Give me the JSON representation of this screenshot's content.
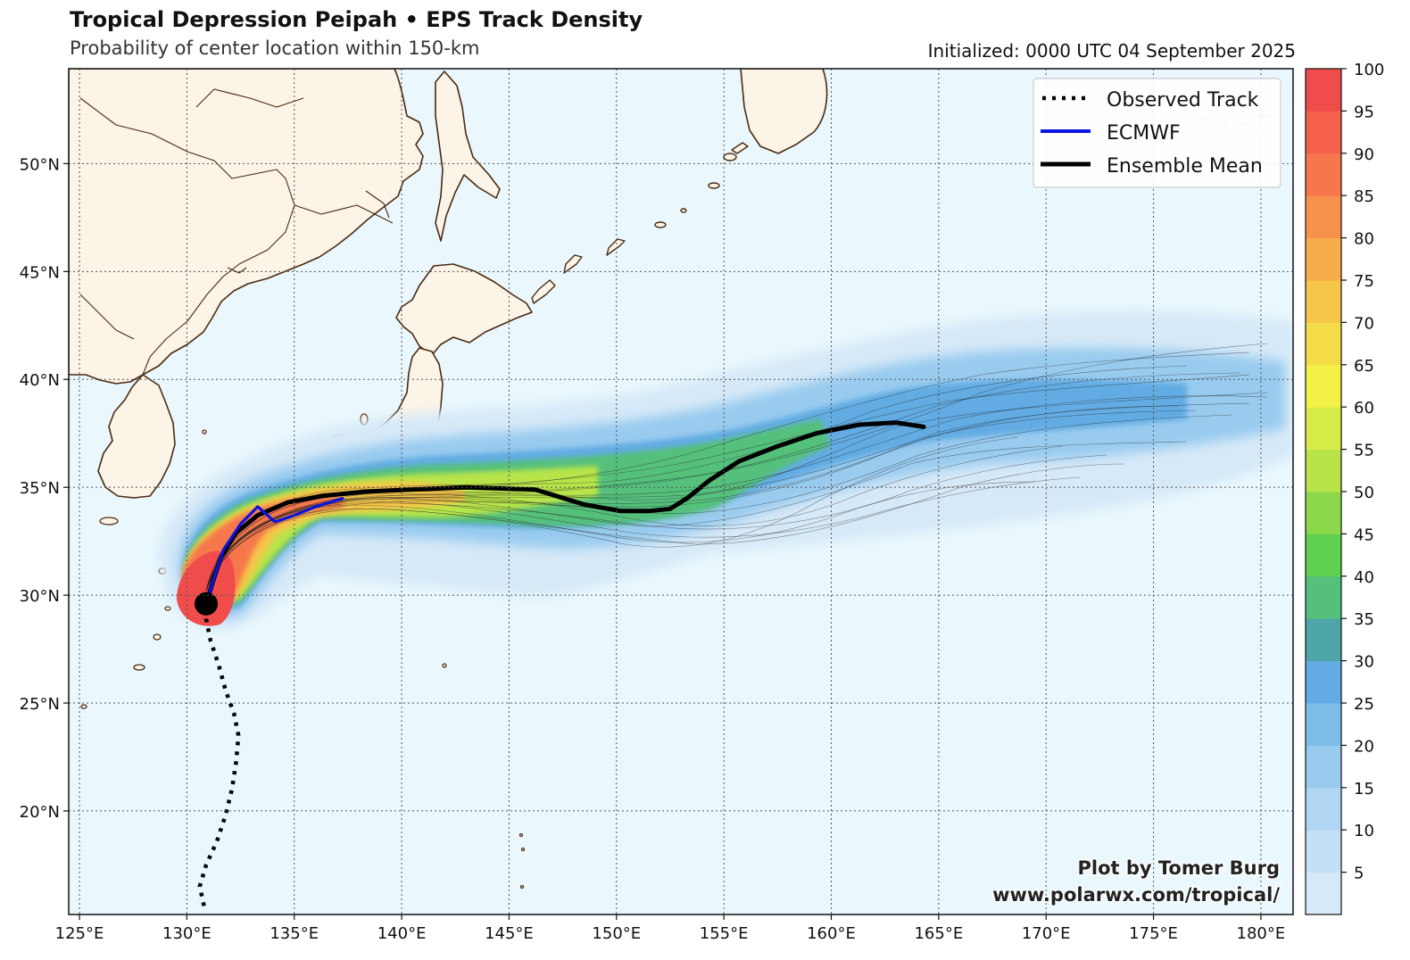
{
  "title": "Tropical Depression Peipah • EPS Track Density",
  "subtitle": "Probability of center location within 150-km",
  "initialized": "Initialized: 0000 UTC 04 September 2025",
  "credit": {
    "line1": "Plot by Tomer Burg",
    "line2": "www.polarwx.com/tropical/"
  },
  "map": {
    "lon_range": [
      124.5,
      181.5
    ],
    "lat_range": [
      15.2,
      54.4
    ],
    "lon_ticks": [
      {
        "value": 125,
        "label": "125°E"
      },
      {
        "value": 130,
        "label": "130°E"
      },
      {
        "value": 135,
        "label": "135°E"
      },
      {
        "value": 140,
        "label": "140°E"
      },
      {
        "value": 145,
        "label": "145°E"
      },
      {
        "value": 150,
        "label": "150°E"
      },
      {
        "value": 155,
        "label": "155°E"
      },
      {
        "value": 160,
        "label": "160°E"
      },
      {
        "value": 165,
        "label": "165°E"
      },
      {
        "value": 170,
        "label": "170°E"
      },
      {
        "value": 175,
        "label": "175°E"
      },
      {
        "value": 180,
        "label": "180°E"
      }
    ],
    "lat_ticks": [
      {
        "value": 20,
        "label": "20°N"
      },
      {
        "value": 25,
        "label": "25°N"
      },
      {
        "value": 30,
        "label": "30°N"
      },
      {
        "value": 35,
        "label": "35°N"
      },
      {
        "value": 40,
        "label": "40°N"
      },
      {
        "value": 45,
        "label": "45°N"
      },
      {
        "value": 50,
        "label": "50°N"
      }
    ],
    "ocean_color": "#eaf8fd",
    "land_color": "#fbf4e7",
    "coast_color": "#4a2a12"
  },
  "legend": {
    "position": "top-right",
    "items": [
      {
        "label": "Observed Track",
        "color": "#000000",
        "style": "dotted"
      },
      {
        "label": "ECMWF",
        "color": "#0a14e0",
        "style": "solid"
      },
      {
        "label": "Ensemble Mean",
        "color": "#000000",
        "style": "solid"
      }
    ]
  },
  "colorbar": {
    "levels": [
      5,
      10,
      15,
      20,
      25,
      30,
      35,
      40,
      45,
      50,
      55,
      60,
      65,
      70,
      75,
      80,
      85,
      90,
      95,
      100
    ],
    "labels": [
      "5",
      "10",
      "15",
      "20",
      "25",
      "30",
      "35",
      "40",
      "45",
      "50",
      "55",
      "60",
      "65",
      "70",
      "75",
      "80",
      "85",
      "90",
      "95",
      "100"
    ],
    "colors": [
      "#d6e9f8",
      "#c4e0f6",
      "#b0d6f3",
      "#99cbef",
      "#7fbde9",
      "#62ace3",
      "#4ea5a8",
      "#54c07c",
      "#5fd04f",
      "#8cd84a",
      "#b8e44a",
      "#d8ec48",
      "#f3f046",
      "#f5dd4a",
      "#f6c64a",
      "#f7ad4c",
      "#f7914d",
      "#f6774c",
      "#f4604c",
      "#f04c4c"
    ]
  },
  "chart_data": {
    "type": "map",
    "observed_track": [
      [
        130.8,
        15.6
      ],
      [
        130.6,
        16.5
      ],
      [
        130.9,
        17.5
      ],
      [
        131.4,
        18.6
      ],
      [
        131.8,
        19.8
      ],
      [
        132.1,
        21.0
      ],
      [
        132.3,
        22.3
      ],
      [
        132.4,
        23.5
      ],
      [
        132.2,
        24.5
      ],
      [
        131.8,
        25.6
      ],
      [
        131.5,
        26.7
      ],
      [
        131.1,
        27.9
      ],
      [
        130.9,
        28.9
      ],
      [
        130.9,
        29.6
      ]
    ],
    "current_position": [
      130.9,
      29.6
    ],
    "ecmwf_track": [
      [
        130.9,
        29.6
      ],
      [
        131.2,
        30.6
      ],
      [
        131.7,
        32.1
      ],
      [
        132.5,
        33.3
      ],
      [
        133.3,
        34.1
      ],
      [
        134.1,
        33.4
      ],
      [
        135.0,
        33.7
      ],
      [
        136.0,
        34.1
      ],
      [
        137.3,
        34.5
      ]
    ],
    "ensemble_mean_track": [
      [
        130.9,
        29.6
      ],
      [
        131.2,
        30.6
      ],
      [
        131.6,
        31.8
      ],
      [
        132.3,
        32.9
      ],
      [
        133.3,
        33.7
      ],
      [
        134.7,
        34.3
      ],
      [
        136.3,
        34.6
      ],
      [
        138.3,
        34.8
      ],
      [
        140.5,
        34.9
      ],
      [
        143.0,
        35.0
      ],
      [
        146.2,
        34.9
      ],
      [
        148.5,
        34.2
      ],
      [
        150.2,
        33.9
      ],
      [
        151.5,
        33.9
      ],
      [
        152.5,
        34.0
      ],
      [
        153.3,
        34.5
      ],
      [
        154.3,
        35.3
      ],
      [
        155.7,
        36.2
      ],
      [
        157.5,
        36.9
      ],
      [
        159.3,
        37.5
      ],
      [
        161.3,
        37.9
      ],
      [
        163.0,
        38.0
      ],
      [
        164.3,
        37.8
      ]
    ],
    "density_peak_region": "southern Japan near Kyushu (>95%)"
  }
}
